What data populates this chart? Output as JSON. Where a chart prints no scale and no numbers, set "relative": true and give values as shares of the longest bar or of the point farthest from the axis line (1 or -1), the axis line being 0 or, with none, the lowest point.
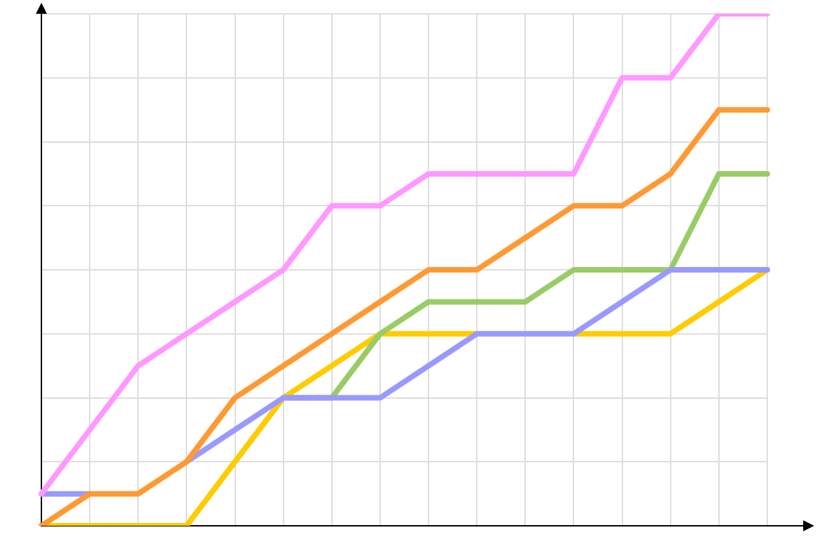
{
  "chart_data": {
    "type": "line",
    "relative": true,
    "grid": true,
    "legend": false,
    "tick_labels": false,
    "marker": "none",
    "line_style": "solid",
    "categories": [
      null,
      null,
      null,
      null,
      null,
      null,
      null,
      null,
      null,
      null,
      null,
      null,
      null,
      null,
      null,
      null
    ],
    "series": [
      {
        "color": "#ff99ff",
        "values": [
          0.0625,
          0.1875,
          0.3125,
          0.375,
          0.4375,
          0.5,
          0.625,
          0.625,
          0.6875,
          0.6875,
          0.6875,
          0.6875,
          0.875,
          0.875,
          1,
          1
        ]
      },
      {
        "color": "#ff9933",
        "values": [
          0,
          0.0625,
          0.0625,
          0.125,
          0.25,
          0.3125,
          0.375,
          0.4375,
          0.5,
          0.5,
          0.5625,
          0.625,
          0.625,
          0.6875,
          0.8125,
          0.8125
        ]
      },
      {
        "color": "#9999ff",
        "values": [
          0.0625,
          0.0625,
          null,
          0.125,
          0.1875,
          0.25,
          0.25,
          0.25,
          0.3125,
          0.375,
          0.375,
          0.375,
          0.4375,
          0.5,
          0.5,
          0.5
        ]
      },
      {
        "color": "#99cc66",
        "values": [
          null,
          null,
          null,
          null,
          null,
          0.25,
          0.25,
          0.375,
          0.4375,
          0.4375,
          0.4375,
          0.5,
          0.5,
          0.5,
          0.6875,
          0.6875
        ]
      },
      {
        "color": "#ffcc00",
        "values": [
          0,
          0,
          0,
          0,
          0.125,
          0.25,
          0.3125,
          0.375,
          0.375,
          0.375,
          null,
          0.375,
          0.375,
          0.375,
          0.4375,
          0.5
        ]
      }
    ]
  }
}
